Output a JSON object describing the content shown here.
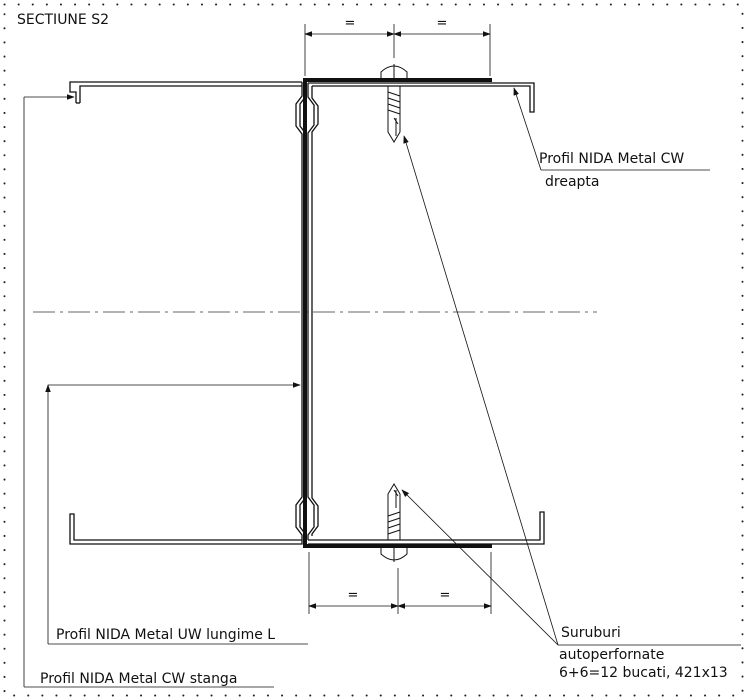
{
  "title": "SECTIUNE S2",
  "dimension_mark": "=",
  "labels": {
    "cw_right_line1": "Profil NIDA Metal CW",
    "cw_right_line2": "dreapta",
    "screws_line1": "Suruburi",
    "screws_line2": "autoperfornate",
    "screws_line3": "6+6=12 bucati, 421x13",
    "uw": "Profil NIDA Metal UW lungime L",
    "cw_left": "Profil NIDA Metal CW stanga"
  },
  "colors": {
    "line": "#111111",
    "border_dots": "#222222",
    "background": "#ffffff"
  }
}
